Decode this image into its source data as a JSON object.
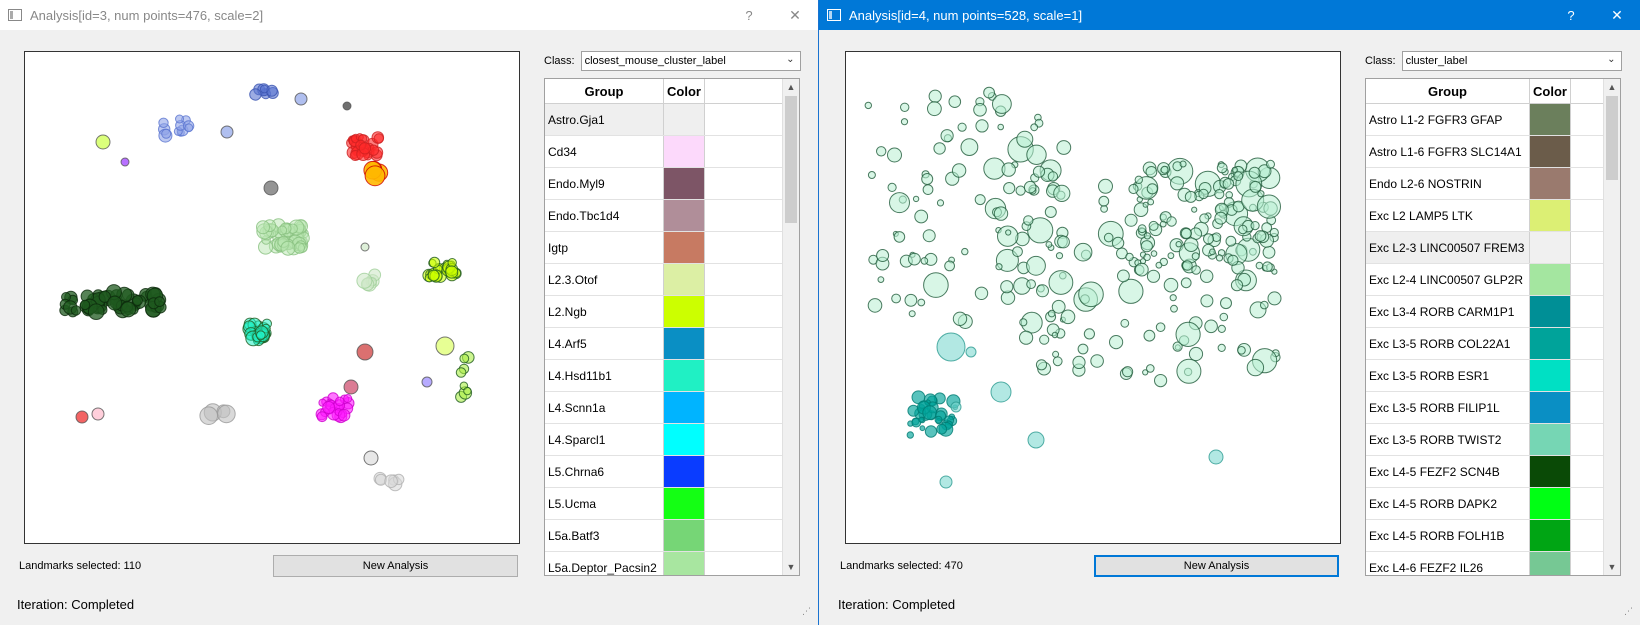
{
  "windows": [
    {
      "title": "Analysis[id=3, num points=476, scale=2]",
      "help_glyph": "?",
      "close_glyph": "✕",
      "class_label": "Class:",
      "class_value": "closest_mouse_cluster_label",
      "table_headers": {
        "group": "Group",
        "color": "Color"
      },
      "groups": [
        {
          "name": "Astro.Gja1",
          "color": "#efefef"
        },
        {
          "name": "Cd34",
          "color": "#fcd9fb"
        },
        {
          "name": "Endo.Myl9",
          "color": "#7d5566"
        },
        {
          "name": "Endo.Tbc1d4",
          "color": "#b08e99"
        },
        {
          "name": "Igtp",
          "color": "#c77a62"
        },
        {
          "name": "L2.3.Otof",
          "color": "#dcefa4"
        },
        {
          "name": "L2.Ngb",
          "color": "#ccff00"
        },
        {
          "name": "L4.Arf5",
          "color": "#0a8fc4"
        },
        {
          "name": "L4.Hsd11b1",
          "color": "#20f0c4"
        },
        {
          "name": "L4.Scnn1a",
          "color": "#00b4ff"
        },
        {
          "name": "L4.Sparcl1",
          "color": "#00ffff"
        },
        {
          "name": "L5.Chrna6",
          "color": "#0a3cff"
        },
        {
          "name": "L5.Ucma",
          "color": "#14ff14"
        },
        {
          "name": "L5a.Batf3",
          "color": "#76d676"
        },
        {
          "name": "L5a.Deptor_Pacsin2",
          "color": "#a8e6a0"
        }
      ],
      "landmarks_text": "Landmarks selected: 110",
      "new_analysis_label": "New Analysis",
      "iteration_text": "Iteration: Completed"
    },
    {
      "title": "Analysis[id=4, num points=528, scale=1]",
      "help_glyph": "?",
      "close_glyph": "✕",
      "class_label": "Class:",
      "class_value": "cluster_label",
      "table_headers": {
        "group": "Group",
        "color": "Color"
      },
      "groups": [
        {
          "name": "Astro L1-2 FGFR3 GFAP",
          "color": "#6b7f5c"
        },
        {
          "name": "Astro L1-6 FGFR3 SLC14A1",
          "color": "#6b5c4a"
        },
        {
          "name": "Endo L2-6 NOSTRIN",
          "color": "#9a7a6e"
        },
        {
          "name": "Exc L2 LAMP5 LTK",
          "color": "#dcef74"
        },
        {
          "name": "Exc L2-3 LINC00507 FREM3",
          "color": "#f0f0f0"
        },
        {
          "name": "Exc L2-4 LINC00507 GLP2R",
          "color": "#a4e6a0"
        },
        {
          "name": "Exc L3-4 RORB CARM1P1",
          "color": "#008f96"
        },
        {
          "name": "Exc L3-5 RORB COL22A1",
          "color": "#00a39a"
        },
        {
          "name": "Exc L3-5 RORB ESR1",
          "color": "#00e0c4"
        },
        {
          "name": "Exc L3-5 RORB FILIP1L",
          "color": "#0a8fc4"
        },
        {
          "name": "Exc L3-5 RORB TWIST2",
          "color": "#76d6b4"
        },
        {
          "name": "Exc L4-5 FEZF2 SCN4B",
          "color": "#0a4a06"
        },
        {
          "name": "Exc L4-5 RORB DAPK2",
          "color": "#00ff14"
        },
        {
          "name": "Exc L4-5 RORB FOLH1B",
          "color": "#00a514"
        },
        {
          "name": "Exc L4-6 FEZF2 IL26",
          "color": "#76c894"
        }
      ],
      "landmarks_text": "Landmarks selected: 470",
      "new_analysis_label": "New Analysis",
      "iteration_text": "Iteration: Completed"
    }
  ]
}
